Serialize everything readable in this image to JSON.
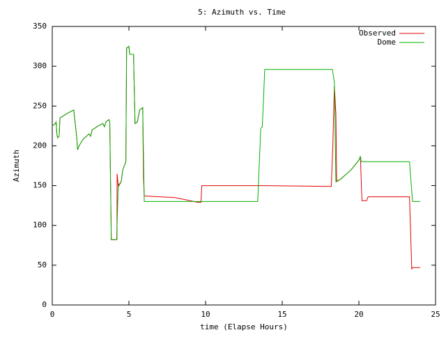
{
  "chart_data": {
    "type": "line",
    "title": "5: Azimuth vs. Time",
    "x_label": "time (Elapse Hours)",
    "y_label": "Azimuth",
    "xlim": [
      0,
      25
    ],
    "xticks": [
      0,
      5,
      10,
      15,
      20,
      25
    ],
    "ylim": [
      0,
      350
    ],
    "yticks": [
      0,
      50,
      100,
      150,
      200,
      250,
      300,
      350
    ],
    "grid": false,
    "legend": "top-right",
    "series": [
      {
        "name": "Observed",
        "color": "#e00000",
        "x": [
          0,
          0.2,
          0.25,
          0.3,
          0.35,
          0.45,
          0.5,
          1.0,
          1.4,
          1.6,
          1.65,
          1.75,
          2.0,
          2.4,
          2.5,
          2.6,
          3.0,
          3.3,
          3.4,
          3.5,
          3.7,
          3.75,
          3.85,
          4.2,
          4.22,
          4.23,
          4.3,
          4.5,
          4.6,
          4.8,
          4.85,
          5.0,
          5.05,
          5.3,
          5.4,
          5.55,
          5.7,
          5.9,
          5.95,
          6.0,
          7.0,
          8.0,
          8.5,
          9.0,
          9.5,
          9.7,
          9.75,
          13.5,
          18.2,
          18.3,
          18.4,
          18.5,
          18.55,
          18.8,
          19.5,
          20.0,
          20.1,
          20.2,
          20.5,
          20.6,
          23.3,
          23.45,
          23.5,
          24.0
        ],
        "values": [
          225,
          228,
          230,
          215,
          210,
          212,
          235,
          241,
          245,
          210,
          195,
          200,
          208,
          215,
          212,
          220,
          225,
          228,
          224,
          230,
          233,
          230,
          82,
          82,
          83,
          165,
          150,
          155,
          170,
          180,
          323,
          325,
          315,
          315,
          228,
          230,
          245,
          248,
          160,
          137,
          136,
          135,
          133,
          131,
          129,
          129,
          150,
          150,
          149,
          200,
          275,
          240,
          155,
          158,
          170,
          182,
          186,
          131,
          131,
          136,
          136,
          45,
          47,
          47
        ]
      },
      {
        "name": "Dome",
        "color": "#00b000",
        "x": [
          0,
          0.2,
          0.25,
          0.3,
          0.35,
          0.45,
          0.5,
          1.0,
          1.4,
          1.6,
          1.65,
          1.75,
          2.0,
          2.4,
          2.5,
          2.6,
          3.0,
          3.3,
          3.4,
          3.5,
          3.7,
          3.75,
          3.85,
          4.2,
          4.3,
          4.5,
          4.6,
          4.8,
          4.85,
          5.0,
          5.05,
          5.3,
          5.4,
          5.55,
          5.7,
          5.9,
          6.0,
          13.4,
          13.6,
          13.7,
          13.86,
          18.27,
          18.4,
          18.5,
          18.8,
          19.5,
          20.0,
          20.1,
          20.15,
          23.3,
          23.5,
          24.0
        ],
        "values": [
          225,
          228,
          230,
          215,
          210,
          212,
          235,
          241,
          245,
          210,
          195,
          200,
          208,
          215,
          212,
          220,
          225,
          228,
          224,
          230,
          233,
          230,
          82,
          82,
          148,
          155,
          170,
          180,
          323,
          325,
          315,
          315,
          228,
          230,
          245,
          248,
          130,
          130,
          222,
          224,
          296,
          296,
          280,
          155,
          158,
          170,
          182,
          187,
          180,
          180,
          130,
          130
        ]
      }
    ]
  }
}
